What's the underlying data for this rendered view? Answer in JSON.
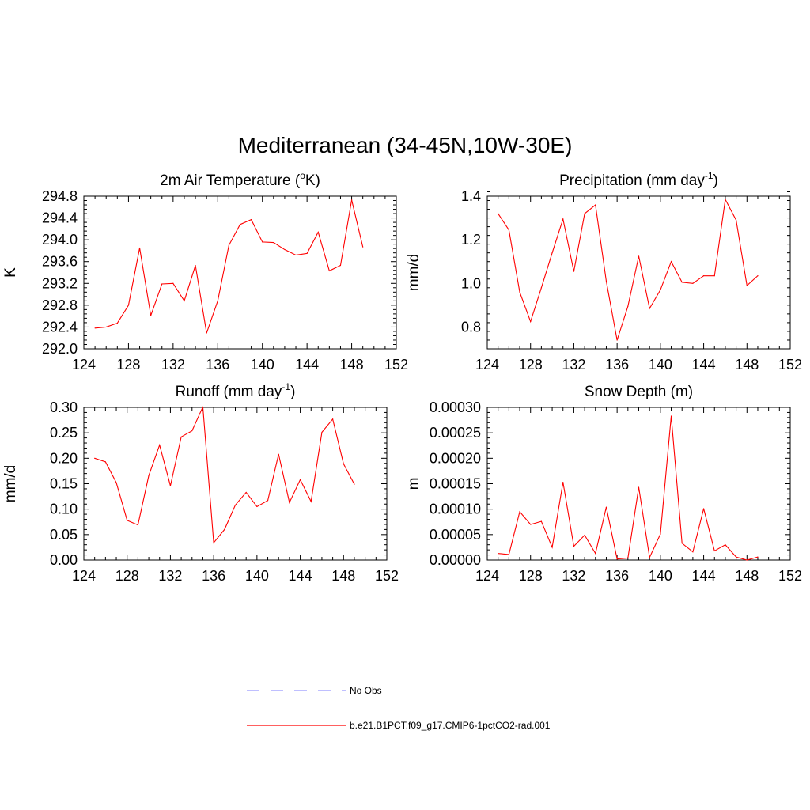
{
  "title": "Mediterranean (34-45N,10W-30E)",
  "colors": {
    "model": "#ff0000",
    "obs": "#9999ff"
  },
  "legend": [
    {
      "label": "No Obs",
      "style": "dashed",
      "color": "#9999ff"
    },
    {
      "label": "b.e21.B1PCT.f09_g17.CMIP6-1pctCO2-rad.001",
      "style": "solid",
      "color": "#ff0000"
    }
  ],
  "chart_data": [
    {
      "type": "line",
      "title": "2m Air Temperature (",
      "title_sup": "o",
      "title_after": "K)",
      "ylabel": "K",
      "xlim": [
        124,
        152
      ],
      "xticks": [
        "124",
        "128",
        "132",
        "136",
        "140",
        "144",
        "148",
        "152"
      ],
      "ylim": [
        292.0,
        294.8
      ],
      "yticks": [
        "292.0",
        "292.4",
        "292.8",
        "293.2",
        "293.6",
        "294.0",
        "294.4",
        "294.8"
      ],
      "series": [
        {
          "x": [
            125,
            126,
            127,
            128,
            129,
            130,
            131,
            132,
            133,
            134,
            135,
            136,
            137,
            138,
            139,
            140,
            141,
            142,
            143,
            144,
            145,
            146,
            147,
            148,
            149
          ],
          "values": [
            292.38,
            292.4,
            292.47,
            292.8,
            293.85,
            292.61,
            293.19,
            293.2,
            292.88,
            293.53,
            292.29,
            292.88,
            293.9,
            294.28,
            294.37,
            293.96,
            293.95,
            293.82,
            293.72,
            293.75,
            294.14,
            293.43,
            293.53,
            294.73,
            293.87
          ]
        }
      ]
    },
    {
      "type": "line",
      "title": "Precipitation (mm day",
      "title_sup": "-1",
      "title_after": ")",
      "ylabel": "mm/d",
      "xlim": [
        124,
        152
      ],
      "xticks": [
        "124",
        "128",
        "132",
        "136",
        "140",
        "144",
        "148",
        "152"
      ],
      "ylim": [
        0.7,
        1.4
      ],
      "yticks": [
        "0.8",
        "1.0",
        "1.2",
        "1.4"
      ],
      "series": [
        {
          "x": [
            125,
            126,
            127,
            128,
            129,
            130,
            131,
            132,
            133,
            134,
            135,
            136,
            137,
            138,
            139,
            140,
            141,
            142,
            143,
            144,
            145,
            146,
            147,
            148,
            149
          ],
          "values": [
            1.32,
            1.245,
            0.96,
            0.825,
            0.98,
            1.14,
            1.295,
            1.055,
            1.32,
            1.36,
            1.01,
            0.74,
            0.895,
            1.125,
            0.885,
            0.97,
            1.1,
            1.005,
            1.0,
            1.035,
            1.035,
            1.385,
            1.29,
            0.99,
            1.035
          ]
        }
      ]
    },
    {
      "type": "line",
      "title": "Runoff (mm day",
      "title_sup": "-1",
      "title_after": ")",
      "ylabel": "mm/d",
      "xlim": [
        124,
        152
      ],
      "xticks": [
        "124",
        "128",
        "132",
        "136",
        "140",
        "144",
        "148",
        "152"
      ],
      "ylim": [
        0.0,
        0.3
      ],
      "yticks": [
        "0.00",
        "0.05",
        "0.10",
        "0.15",
        "0.20",
        "0.25",
        "0.30"
      ],
      "series": [
        {
          "x": [
            125,
            126,
            127,
            128,
            129,
            130,
            131,
            132,
            133,
            134,
            135,
            136,
            137,
            138,
            139,
            140,
            141,
            142,
            143,
            144,
            145,
            146,
            147,
            148,
            149
          ],
          "values": [
            0.2,
            0.193,
            0.152,
            0.078,
            0.069,
            0.166,
            0.226,
            0.146,
            0.242,
            0.254,
            0.301,
            0.034,
            0.06,
            0.108,
            0.133,
            0.105,
            0.117,
            0.208,
            0.113,
            0.158,
            0.115,
            0.251,
            0.277,
            0.189,
            0.149
          ]
        }
      ]
    },
    {
      "type": "line",
      "title": "Snow Depth (m)",
      "title_sup": "",
      "title_after": "",
      "ylabel": "m",
      "xlim": [
        124,
        152
      ],
      "xticks": [
        "124",
        "128",
        "132",
        "136",
        "140",
        "144",
        "148",
        "152"
      ],
      "ylim": [
        0.0,
        0.0003
      ],
      "yticks": [
        "0.00000",
        "0.00005",
        "0.00010",
        "0.00015",
        "0.00020",
        "0.00025",
        "0.00030"
      ],
      "series": [
        {
          "x": [
            125,
            126,
            127,
            128,
            129,
            130,
            131,
            132,
            133,
            134,
            135,
            136,
            137,
            138,
            139,
            140,
            141,
            142,
            143,
            144,
            145,
            146,
            147,
            148,
            149
          ],
          "values": [
            1.3e-05,
            1.1e-05,
            9.5e-05,
            7e-05,
            7.6e-05,
            2.5e-05,
            0.000153,
            2.7e-05,
            4.9e-05,
            1.3e-05,
            0.000104,
            2e-06,
            4e-06,
            0.000143,
            5e-06,
            5.1e-05,
            0.000283,
            3.3e-05,
            1.6e-05,
            0.000101,
            1.8e-05,
            3e-05,
            6e-06,
            0.0,
            6e-06
          ]
        }
      ]
    }
  ]
}
